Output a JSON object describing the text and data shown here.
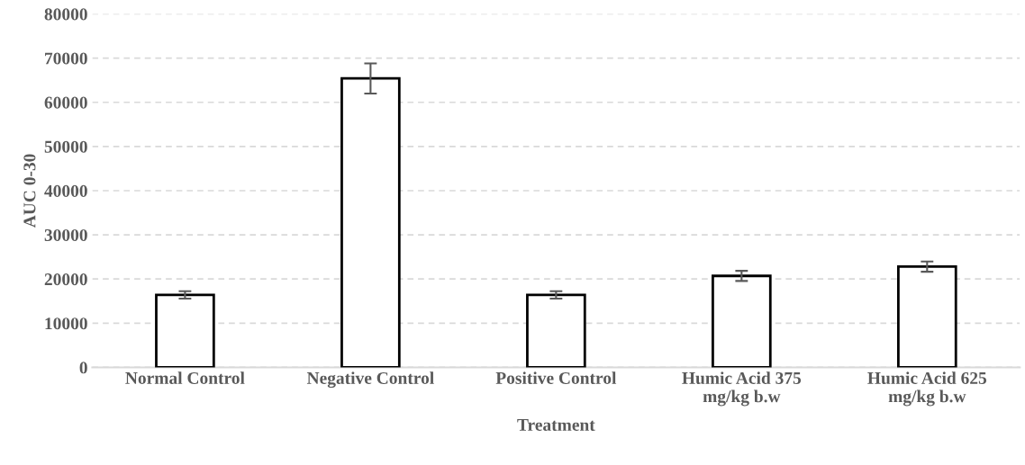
{
  "chart_data": {
    "type": "bar",
    "xlabel": "Treatment",
    "ylabel": "AUC 0-30",
    "categories": [
      "Normal Control",
      "Negative Control",
      "Positive Control",
      "Humic Acid 375\nmg/kg b.w",
      "Humic Acid 625\nmg/kg b.w"
    ],
    "values": [
      16400,
      65400,
      16400,
      20700,
      22800
    ],
    "errors": [
      850,
      3400,
      850,
      1150,
      1150
    ],
    "color": "#ffffff",
    "ylim": [
      0,
      80000
    ],
    "yticks": [
      0,
      10000,
      20000,
      30000,
      40000,
      50000,
      60000,
      70000,
      80000
    ],
    "grid": "y",
    "legend": false
  }
}
